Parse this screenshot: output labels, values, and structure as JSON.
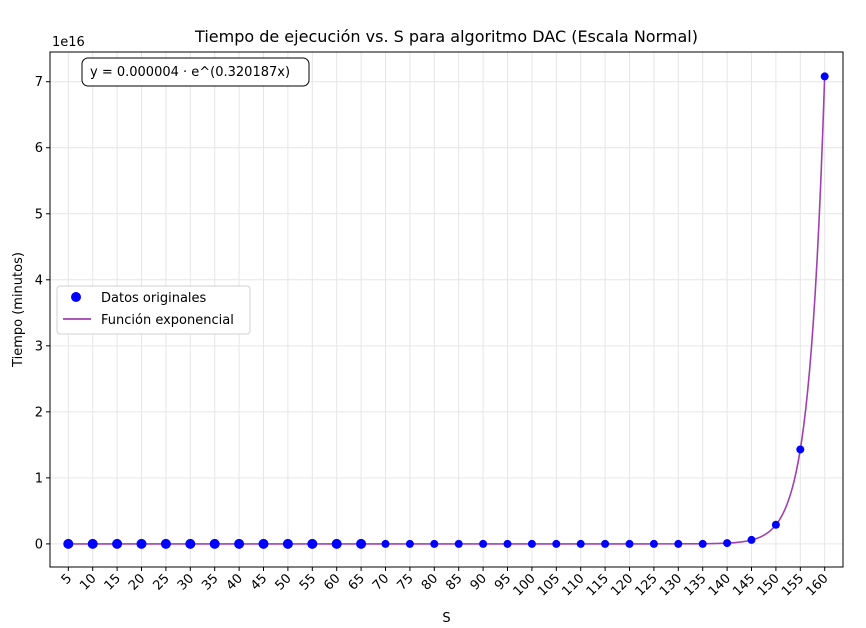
{
  "chart_data": {
    "type": "scatter",
    "title": "Tiempo de ejecución vs. S para algoritmo DAC (Escala Normal)",
    "xlabel": "S",
    "ylabel": "Tiempo (minutos)",
    "offset_label": "1e16",
    "annotation": "y = 0.000004 · e^(0.320187x)",
    "xlim": [
      1.25,
      163.75
    ],
    "ylim": [
      -0.35,
      7.45
    ],
    "y_unit_multiplier": 1e+16,
    "x_ticks": [
      5,
      10,
      15,
      20,
      25,
      30,
      35,
      40,
      45,
      50,
      55,
      60,
      65,
      70,
      75,
      80,
      85,
      90,
      95,
      100,
      105,
      110,
      115,
      120,
      125,
      130,
      135,
      140,
      145,
      150,
      155,
      160
    ],
    "y_ticks": [
      0,
      1,
      2,
      3,
      4,
      5,
      6,
      7
    ],
    "grid": true,
    "legend": {
      "position": "center-left",
      "entries": [
        "Datos originales",
        "Función exponencial"
      ]
    },
    "series": [
      {
        "name": "Datos originales",
        "kind": "scatter",
        "color": "#0000ff",
        "x": [
          5,
          10,
          15,
          20,
          25,
          30,
          35,
          40,
          45,
          50,
          55,
          60,
          65,
          70,
          75,
          80,
          85,
          90,
          95,
          100,
          105,
          110,
          115,
          120,
          125,
          130,
          135,
          140,
          145,
          150,
          155,
          160
        ],
        "y": [
          0,
          0,
          0,
          0,
          0,
          0,
          0,
          0,
          0,
          0,
          0,
          0,
          0,
          0,
          0,
          0,
          0,
          0,
          0,
          0,
          0,
          0,
          0,
          0,
          0,
          0,
          0,
          0.012,
          0.06,
          0.29,
          1.43,
          7.08
        ],
        "large_marker_until_x": 65
      },
      {
        "name": "Función exponencial",
        "kind": "line",
        "color": "#a040b0",
        "a": 4e-06,
        "b": 0.320187,
        "x_range": [
          5,
          160
        ]
      }
    ]
  }
}
